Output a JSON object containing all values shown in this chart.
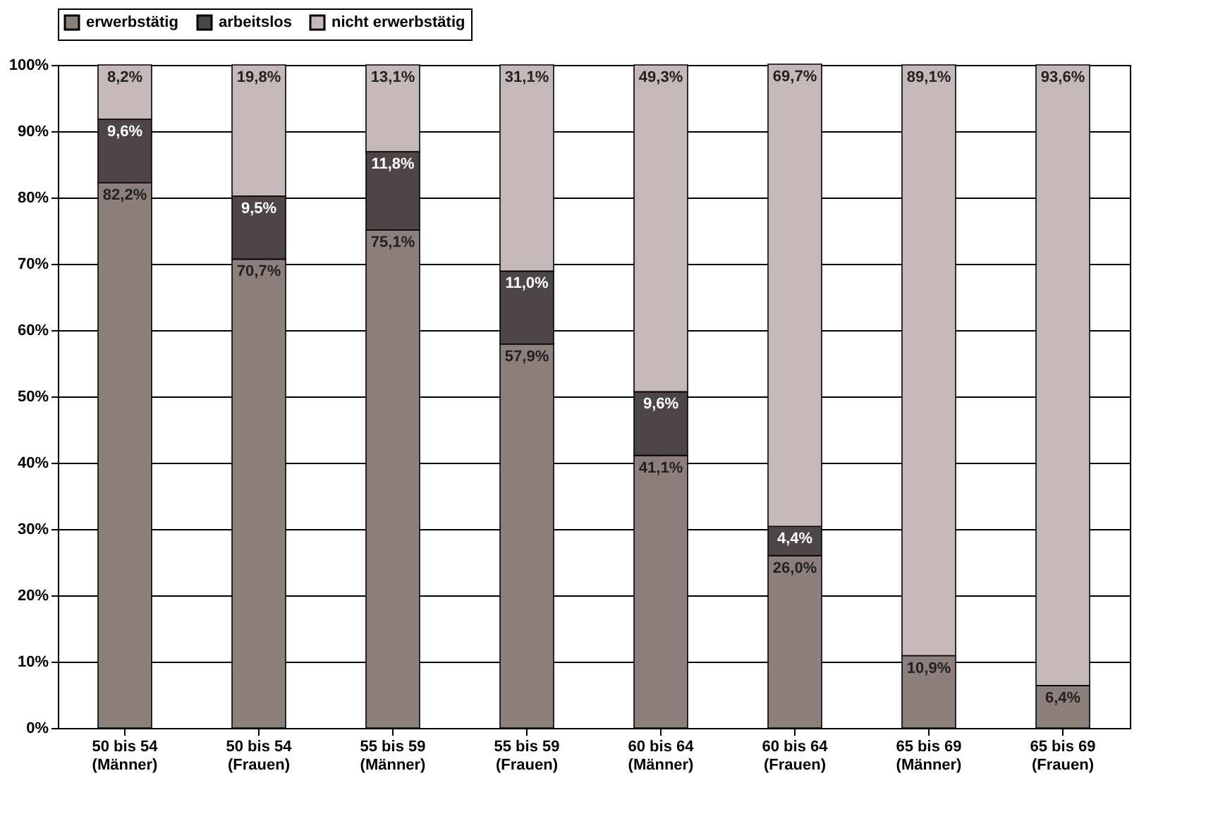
{
  "chart_data": {
    "type": "bar",
    "stacked": true,
    "categories": [
      "50 bis 54\n(Männer)",
      "50 bis 54\n(Frauen)",
      "55 bis 59\n(Männer)",
      "55 bis 59\n(Frauen)",
      "60 bis 64\n(Männer)",
      "60 bis 64\n(Frauen)",
      "65 bis 69\n(Männer)",
      "65 bis 69\n(Frauen)"
    ],
    "series": [
      {
        "name": "erwerbstätig",
        "color": "#8c7f7c",
        "values": [
          82.2,
          70.7,
          75.1,
          57.9,
          41.1,
          26.0,
          10.9,
          6.4
        ],
        "value_labels": [
          "82,2%",
          "70,7%",
          "75,1%",
          "57,9%",
          "41,1%",
          "26,0%",
          "10,9%",
          "6,4%"
        ]
      },
      {
        "name": "arbeitslos",
        "color": "#4d4546",
        "values": [
          9.6,
          9.5,
          11.8,
          11.0,
          9.6,
          4.4,
          null,
          null
        ],
        "value_labels": [
          "9,6%",
          "9,5%",
          "11,8%",
          "11,0%",
          "9,6%",
          "4,4%",
          null,
          null
        ]
      },
      {
        "name": "nicht erwerbstätig",
        "color": "#c4b9b8",
        "values": [
          8.2,
          19.8,
          13.1,
          31.1,
          49.3,
          69.7,
          89.1,
          93.6
        ],
        "value_labels": [
          "8,2%",
          "19,8%",
          "13,1%",
          "31,1%",
          "49,3%",
          "69,7%",
          "89,1%",
          "93,6%"
        ]
      }
    ],
    "ylim": [
      0,
      100
    ],
    "yticks": [
      {
        "value": 0,
        "label": "0%"
      },
      {
        "value": 10,
        "label": "10%"
      },
      {
        "value": 20,
        "label": "20%"
      },
      {
        "value": 30,
        "label": "30%"
      },
      {
        "value": 40,
        "label": "40%"
      },
      {
        "value": 50,
        "label": "50%"
      },
      {
        "value": 60,
        "label": "60%"
      },
      {
        "value": 70,
        "label": "70%"
      },
      {
        "value": 80,
        "label": "80%"
      },
      {
        "value": 90,
        "label": "90%"
      },
      {
        "value": 100,
        "label": "100%"
      }
    ],
    "grid": "y",
    "legend": "top"
  }
}
